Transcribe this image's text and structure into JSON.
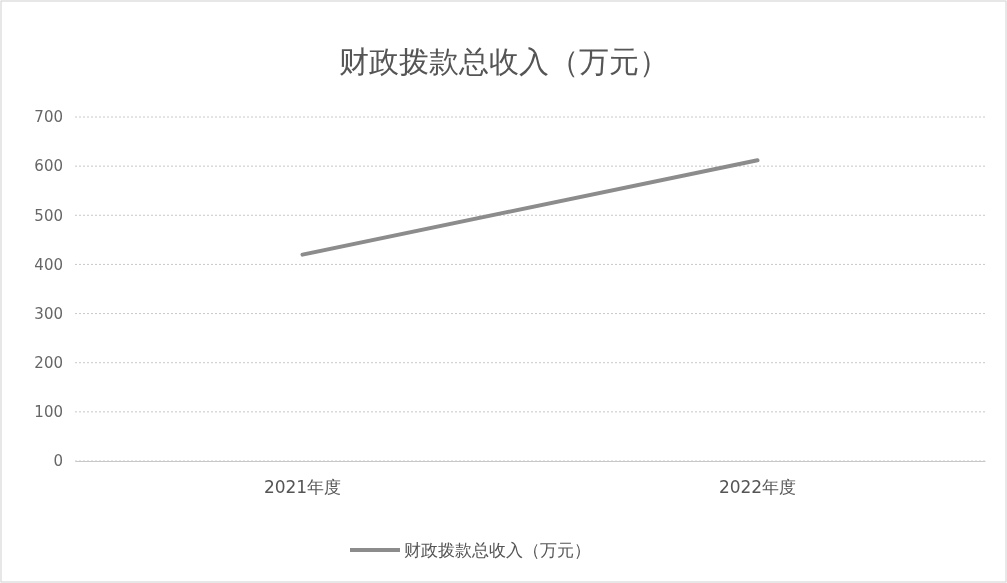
{
  "chart_data": {
    "type": "line",
    "title": "财政拨款总收入（万元）",
    "categories": [
      "2021年度",
      "2022年度"
    ],
    "series": [
      {
        "name": "财政拨款总收入（万元）",
        "color": "#8c8c8c",
        "values": [
          420,
          612
        ]
      }
    ],
    "ylim": [
      0,
      700
    ],
    "yticks": [
      0,
      100,
      200,
      300,
      400,
      500,
      600,
      700
    ],
    "grid": "y",
    "legend": "bottom",
    "marker": "none",
    "line_style": "solid"
  }
}
